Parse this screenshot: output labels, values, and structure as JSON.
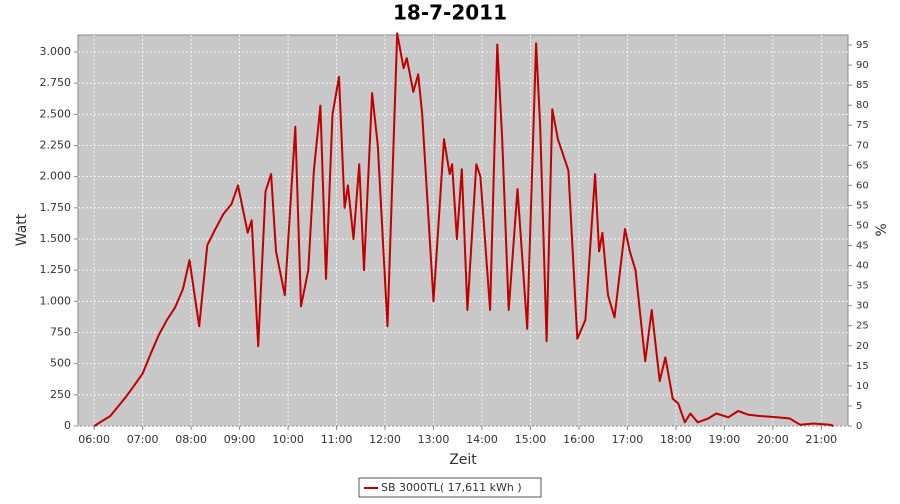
{
  "chart_data": {
    "type": "line",
    "title": "18-7-2011",
    "x_label": "Zeit",
    "y_label": "Watt",
    "y2_label": "%",
    "grid": true,
    "legend": "bottom",
    "background": "#c8c8c8",
    "grid_color": "#ffffff",
    "xlim": [
      "05:40",
      "21:33"
    ],
    "xticks": [
      "06:00",
      "07:00",
      "08:00",
      "09:00",
      "10:00",
      "11:00",
      "12:00",
      "13:00",
      "14:00",
      "15:00",
      "16:00",
      "17:00",
      "18:00",
      "19:00",
      "20:00",
      "21:00"
    ],
    "ylim": [
      0,
      3136
    ],
    "yticks": [
      0,
      250,
      500,
      750,
      {
        "value": 1000,
        "label": "1.000"
      },
      {
        "value": 1250,
        "label": "1.250"
      },
      {
        "value": 1500,
        "label": "1.500"
      },
      {
        "value": 1750,
        "label": "1.750"
      },
      {
        "value": 2000,
        "label": "2.000"
      },
      {
        "value": 2250,
        "label": "2.250"
      },
      {
        "value": 2500,
        "label": "2.500"
      },
      {
        "value": 2750,
        "label": "2.750"
      },
      {
        "value": 3000,
        "label": "3.000"
      }
    ],
    "y2lim": [
      0,
      97.5
    ],
    "y2ticks": [
      0,
      5,
      10,
      15,
      20,
      25,
      30,
      35,
      40,
      45,
      50,
      55,
      60,
      65,
      70,
      75,
      80,
      85,
      90,
      95
    ],
    "x": [
      "06:00",
      "06:10",
      "06:20",
      "06:30",
      "06:40",
      "06:50",
      "07:00",
      "07:10",
      "07:20",
      "07:30",
      "07:40",
      "07:50",
      "07:58",
      "08:10",
      "08:20",
      "08:30",
      "08:40",
      "08:50",
      "08:58",
      "09:10",
      "09:15",
      "09:23",
      "09:32",
      "09:39",
      "09:45",
      "09:56",
      "10:09",
      "10:16",
      "10:25",
      "10:32",
      "10:40",
      "10:47",
      "10:55",
      "11:03",
      "11:10",
      "11:14",
      "11:21",
      "11:28",
      "11:34",
      "11:44",
      "11:51",
      "12:03",
      "12:15",
      "12:23",
      "12:27",
      "12:35",
      "12:41",
      "12:46",
      "13:00",
      "13:13",
      "13:20",
      "13:23",
      "13:29",
      "13:35",
      "13:42",
      "13:53",
      "13:58",
      "14:10",
      "14:19",
      "14:25",
      "14:33",
      "14:44",
      "14:56",
      "15:07",
      "15:12",
      "15:20",
      "15:27",
      "15:34",
      "15:47",
      "15:58",
      "16:08",
      "16:20",
      "16:25",
      "16:29",
      "16:36",
      "16:44",
      "16:57",
      "17:03",
      "17:10",
      "17:22",
      "17:30",
      "17:40",
      "17:47",
      "17:56",
      "18:03",
      "18:11",
      "18:18",
      "18:27",
      "18:40",
      "18:50",
      "19:05",
      "19:17",
      "19:30",
      "19:44",
      "20:05",
      "20:21",
      "20:34",
      "20:50",
      "21:11",
      "21:15"
    ],
    "series": [
      {
        "name": "SB 3000TL( 17,611 kWh )",
        "color": "#c00000",
        "values": [
          0,
          40,
          80,
          160,
          240,
          330,
          420,
          580,
          730,
          850,
          950,
          1100,
          1330,
          800,
          1450,
          1580,
          1700,
          1780,
          1930,
          1550,
          1650,
          640,
          1880,
          2020,
          1400,
          1050,
          2400,
          960,
          1250,
          2050,
          2570,
          1180,
          2500,
          2800,
          1750,
          1930,
          1500,
          2100,
          1250,
          2670,
          2250,
          800,
          3150,
          2870,
          2950,
          2680,
          2820,
          2500,
          1000,
          2300,
          2020,
          2100,
          1500,
          2060,
          930,
          2100,
          2000,
          930,
          3060,
          2300,
          930,
          1900,
          780,
          3070,
          2400,
          680,
          2540,
          2300,
          2050,
          700,
          850,
          2020,
          1400,
          1550,
          1050,
          870,
          1580,
          1400,
          1250,
          520,
          930,
          360,
          550,
          220,
          180,
          30,
          100,
          30,
          60,
          100,
          70,
          120,
          90,
          80,
          70,
          60,
          10,
          20,
          10,
          0
        ]
      }
    ]
  }
}
